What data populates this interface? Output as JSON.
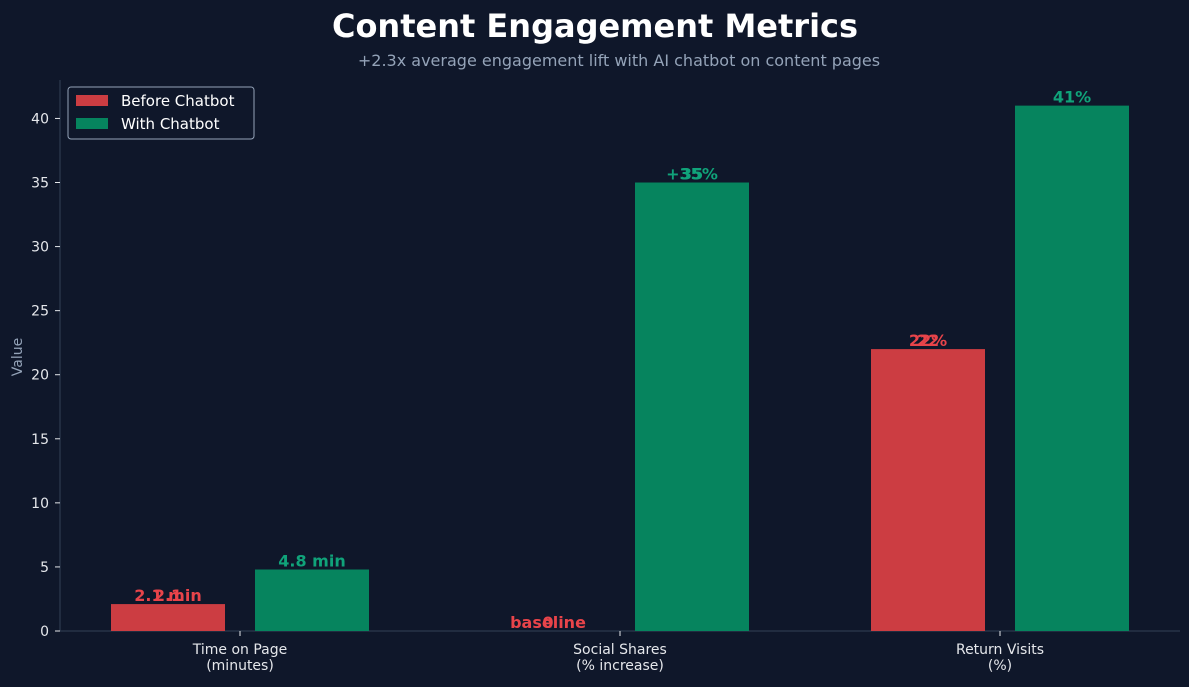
{
  "colors": {
    "background": "#0f172a",
    "before": "#cc3d42",
    "with": "#06845e",
    "before_label": "#e8444a",
    "with_label": "#10a37a",
    "axis": "#334155"
  },
  "chart_data": {
    "type": "bar",
    "title": "Content Engagement Metrics",
    "subtitle": "+2.3x average engagement lift with AI chatbot on content pages",
    "ylabel": "Value",
    "xlabel": "",
    "ylim": [
      0,
      43
    ],
    "yticks": [
      0,
      5,
      10,
      15,
      20,
      25,
      30,
      35,
      40
    ],
    "categories": [
      [
        "Time on Page",
        "(minutes)"
      ],
      [
        "Social Shares",
        "(% increase)"
      ],
      [
        "Return Visits",
        "(%)"
      ]
    ],
    "legend_position": "top-left",
    "grid": false,
    "series": [
      {
        "name": "Before Chatbot",
        "values": [
          2.1,
          0,
          22
        ],
        "labels": [
          [
            "2.1 min",
            "2.1"
          ],
          [
            "baseline",
            "0"
          ],
          [
            "22%",
            "22"
          ]
        ]
      },
      {
        "name": "With Chatbot",
        "values": [
          4.8,
          35,
          41
        ],
        "labels": [
          [
            "4.8 min"
          ],
          [
            "+35%",
            "35"
          ],
          [
            "41%"
          ]
        ]
      }
    ]
  }
}
